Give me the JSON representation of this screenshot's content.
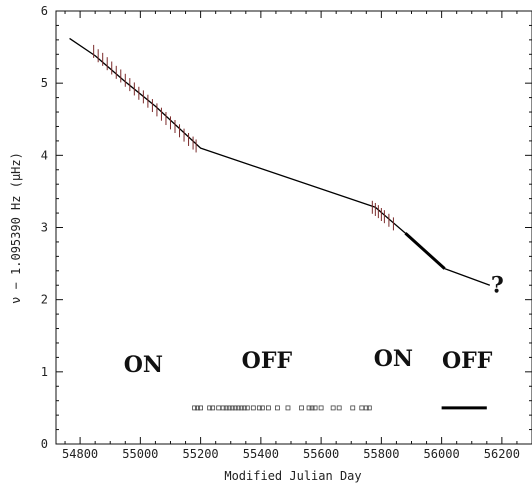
{
  "chart_data": {
    "type": "line",
    "xlabel": "Modified Julian Day",
    "ylabel": "ν − 1.095390 Hz (μHz)",
    "xlim": [
      54720,
      56300
    ],
    "ylim": [
      0,
      6
    ],
    "xticks": [
      54800,
      55000,
      55200,
      55400,
      55600,
      55800,
      56000,
      56200
    ],
    "yticks": [
      0,
      1,
      2,
      3,
      4,
      5,
      6
    ],
    "grid": false,
    "series": [
      {
        "style": "solid-line",
        "x": [
          54765,
          54850,
          54950,
          55050,
          55200,
          55780,
          55880,
          56010,
          56160
        ],
        "y": [
          5.62,
          5.38,
          5.02,
          4.68,
          4.1,
          3.28,
          2.92,
          2.43,
          2.2
        ]
      },
      {
        "style": "thick-segment",
        "x": [
          55880,
          56010
        ],
        "y": [
          2.92,
          2.43
        ]
      }
    ],
    "measurements": {
      "style": "vertical-error-bars",
      "x": [
        54845,
        54860,
        54875,
        54890,
        54905,
        54920,
        54935,
        54950,
        54965,
        54980,
        54995,
        55010,
        55025,
        55040,
        55055,
        55070,
        55085,
        55100,
        55115,
        55130,
        55145,
        55160,
        55175,
        55185,
        55770,
        55780,
        55790,
        55800,
        55810,
        55825,
        55840
      ],
      "y": [
        5.44,
        5.38,
        5.33,
        5.27,
        5.21,
        5.15,
        5.1,
        5.04,
        4.98,
        4.92,
        4.86,
        4.81,
        4.75,
        4.69,
        4.63,
        4.57,
        4.51,
        4.45,
        4.4,
        4.34,
        4.28,
        4.22,
        4.17,
        4.13,
        3.28,
        3.25,
        3.22,
        3.18,
        3.15,
        3.1,
        3.05
      ],
      "err": 0.09
    },
    "observations": {
      "style": "open-squares",
      "y": 0.5,
      "x": [
        55180,
        55190,
        55200,
        55230,
        55240,
        55260,
        55275,
        55285,
        55295,
        55305,
        55315,
        55325,
        55335,
        55345,
        55355,
        55375,
        55395,
        55405,
        55425,
        55455,
        55490,
        55535,
        55560,
        55570,
        55580,
        55600,
        55640,
        55660,
        55705,
        55735,
        55750,
        55760
      ]
    },
    "observation_segment": {
      "y": 0.5,
      "x": [
        56000,
        56150
      ]
    },
    "annotations": [
      {
        "text": "ON",
        "x": 55010,
        "y": 1.0
      },
      {
        "text": "OFF",
        "x": 55420,
        "y": 1.05
      },
      {
        "text": "ON",
        "x": 55840,
        "y": 1.08
      },
      {
        "text": "OFF",
        "x": 56085,
        "y": 1.05
      },
      {
        "text": "?",
        "x": 56185,
        "y": 2.1
      }
    ]
  }
}
